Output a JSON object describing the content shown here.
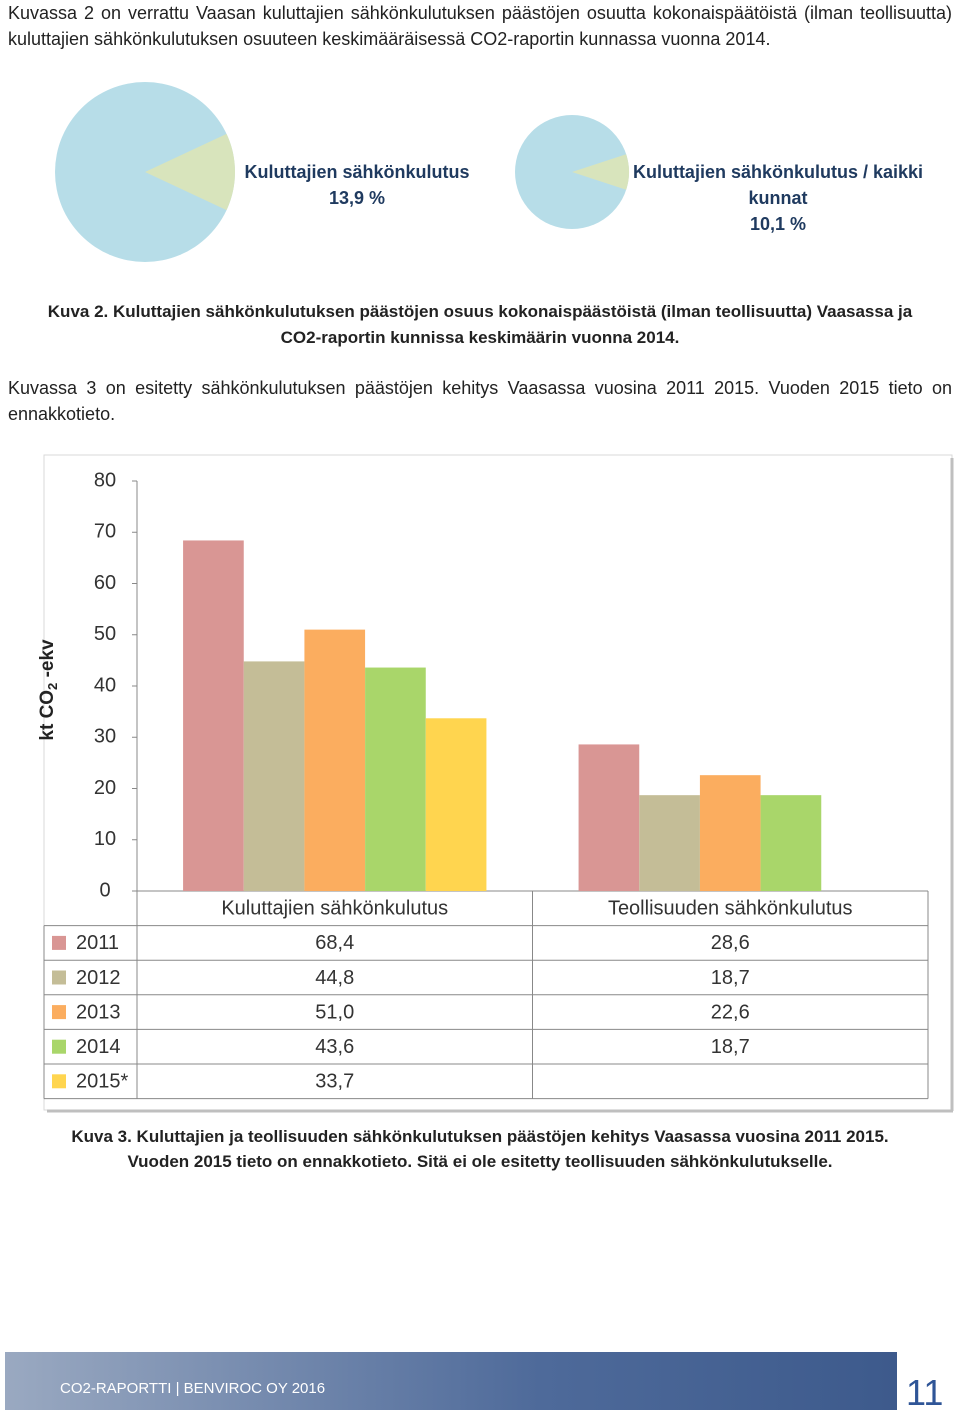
{
  "intro": "Kuvassa 2 on verrattu Vaasan kuluttajien sähkönkulutuksen päästöjen osuutta kokonaispäätöistä (ilman teollisuutta) kuluttajien sähkönkulutuksen osuuteen keskimääräisessä CO2-raportin kunnassa vuonna 2014.",
  "pie_caption": [
    "Kuva 2. Kuluttajien sähkönkulutuksen päästöjen osuus kokonaispäästöistä (ilman teollisuutta) Vaasassa ja",
    "CO2-raportin kunnissa keskimäärin vuonna 2014."
  ],
  "paragraph": "Kuvassa 3 on esitetty sähkönkulutuksen päästöjen kehitys Vaasassa vuosina 2011 2015. Vuoden 2015 tieto on ennakkotieto.",
  "chart_data": [
    {
      "type": "pie",
      "categories": [
        "Kuluttajien sähkönkulutus"
      ],
      "values": [
        13.9
      ],
      "value_labels": [
        "13,9 %"
      ],
      "color": "#d8e4bc",
      "background": "#b7dde8"
    },
    {
      "type": "pie",
      "categories": [
        "Kuluttajien sähkönkulutus / kaikki kunnat"
      ],
      "values": [
        10.1
      ],
      "value_labels": [
        "10,1 %"
      ],
      "color": "#d8e4bc",
      "background": "#b7dde8"
    },
    {
      "type": "bar",
      "y_label": {
        "text": "kt CO",
        "sub": "2",
        "after": " -ekv"
      },
      "categories": [
        "Kuluttajien sähkönkulutus",
        "Teollisuuden sähkönkulutus"
      ],
      "series": [
        {
          "name": "2011",
          "color": "#d99694",
          "values": [
            68.4,
            28.6
          ],
          "value_labels": [
            "68,4",
            "28,6"
          ]
        },
        {
          "name": "2012",
          "color": "#c4bd97",
          "values": [
            44.8,
            18.7
          ],
          "value_labels": [
            "44,8",
            "18,7"
          ]
        },
        {
          "name": "2013",
          "color": "#fbad5f",
          "values": [
            51.0,
            22.6
          ],
          "value_labels": [
            "51,0",
            "22,6"
          ]
        },
        {
          "name": "2014",
          "color": "#a9d66a",
          "values": [
            43.6,
            18.7
          ],
          "value_labels": [
            "43,6",
            "18,7"
          ]
        },
        {
          "name": "2015*",
          "color": "#ffd54f",
          "values": [
            33.7,
            null
          ],
          "value_labels": [
            "33,7",
            null
          ]
        }
      ],
      "ylim": [
        0,
        80
      ],
      "yticks": [
        0,
        10,
        20,
        30,
        40,
        50,
        60,
        70,
        80
      ],
      "grid": false
    }
  ],
  "bar_caption": [
    "Kuva 3. Kuluttajien ja teollisuuden sähkönkulutuksen päästöjen kehitys Vaasassa vuosina 2011 2015.",
    "Vuoden 2015 tieto on ennakkotieto. Sitä ei ole esitetty teollisuuden sähkönkulutukselle."
  ],
  "footer": {
    "text": "CO2-RAPORTTI | BENVIROC OY 2016",
    "page": "11"
  }
}
